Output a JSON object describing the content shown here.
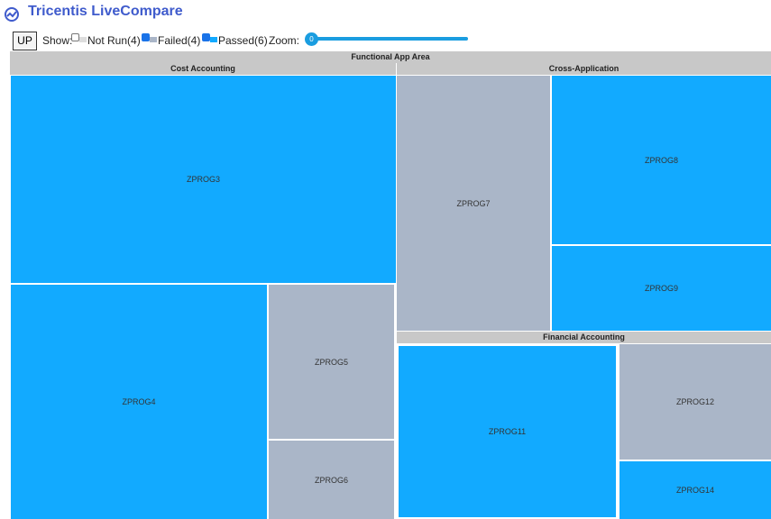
{
  "header": {
    "title": "Tricentis LiveCompare"
  },
  "toolbar": {
    "button": "UP",
    "show_label": "Show:",
    "filters": [
      "Not Run(4)",
      "Failed(4)",
      "Passed(6)"
    ],
    "zoom_label": "Zoom:",
    "zoom_value": "0"
  },
  "treemap": {
    "root": "Functional App Area",
    "groups": [
      {
        "label": "Cost Accounting",
        "nodes": [
          "ZPROG3",
          "ZPROG4",
          "ZPROG5",
          "ZPROG6"
        ]
      },
      {
        "label": "Cross-Application",
        "nodes": [
          "ZPROG7",
          "ZPROG8",
          "ZPROG9"
        ]
      },
      {
        "label": "Financial Accounting",
        "nodes": [
          "ZPROG11",
          "ZPROG12",
          "ZPROG14"
        ]
      }
    ]
  }
}
